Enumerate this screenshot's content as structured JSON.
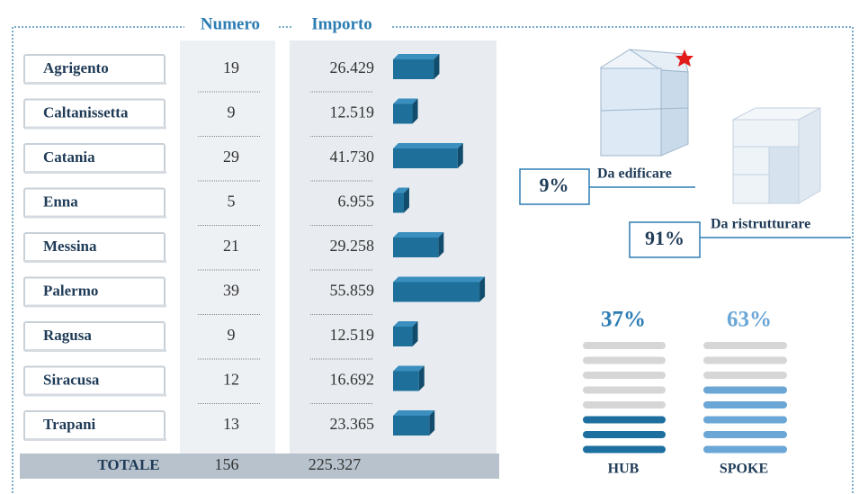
{
  "header": {
    "numero": "Numero",
    "importo": "Importo"
  },
  "table": {
    "rows": [
      {
        "name": "Agrigento",
        "numero": 19,
        "importo": {
          "value": 26429,
          "label": "26.429"
        }
      },
      {
        "name": "Caltanissetta",
        "numero": 9,
        "importo": {
          "value": 12519,
          "label": "12.519"
        }
      },
      {
        "name": "Catania",
        "numero": 29,
        "importo": {
          "value": 41730,
          "label": "41.730"
        }
      },
      {
        "name": "Enna",
        "numero": 5,
        "importo": {
          "value": 6955,
          "label": "6.955"
        }
      },
      {
        "name": "Messina",
        "numero": 21,
        "importo": {
          "value": 29258,
          "label": "29.258"
        }
      },
      {
        "name": "Palermo",
        "numero": 39,
        "importo": {
          "value": 55859,
          "label": "55.859"
        }
      },
      {
        "name": "Ragusa",
        "numero": 9,
        "importo": {
          "value": 12519,
          "label": "12.519"
        }
      },
      {
        "name": "Siracusa",
        "numero": 12,
        "importo": {
          "value": 16692,
          "label": "16.692"
        }
      },
      {
        "name": "Trapani",
        "numero": 13,
        "importo": {
          "value": 23365,
          "label": "23.365"
        }
      }
    ],
    "total": {
      "label": "TOTALE",
      "numero": 156,
      "importo": "225.327"
    }
  },
  "buildings": {
    "new": {
      "percent": "9%",
      "label": "Da edificare"
    },
    "renovate": {
      "percent": "91%",
      "label": "Da ristrutturare"
    }
  },
  "hub_spoke": {
    "hub": {
      "percent": "37%",
      "label": "HUB"
    },
    "spoke": {
      "percent": "63%",
      "label": "SPOKE"
    }
  }
}
